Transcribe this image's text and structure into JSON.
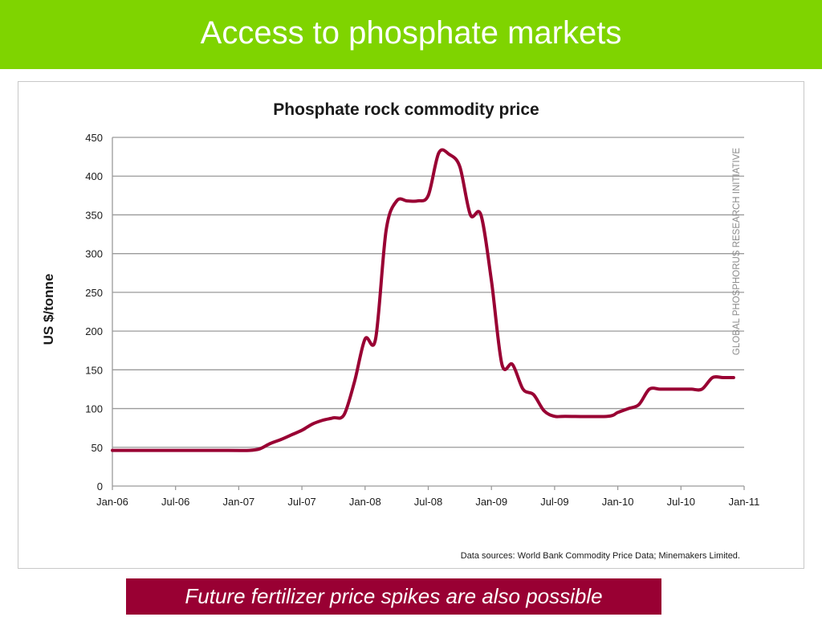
{
  "slide": {
    "title": "Access to phosphate markets",
    "banner_text": "Future fertilizer price spikes are also possible"
  },
  "colors": {
    "header_bg": "#7fd400",
    "banner_bg": "#990033",
    "line": "#990033"
  },
  "chart_data": {
    "type": "line",
    "title": "Phosphate rock commodity price",
    "ylabel": "US $/tonne",
    "xlabel": "",
    "ylim": [
      0,
      450
    ],
    "yticks": [
      0,
      50,
      100,
      150,
      200,
      250,
      300,
      350,
      400,
      450
    ],
    "xrange": [
      "2006-01",
      "2011-01"
    ],
    "xticks": [
      "Jan-06",
      "Jul-06",
      "Jan-07",
      "Jul-07",
      "Jan-08",
      "Jul-08",
      "Jan-09",
      "Jul-09",
      "Jan-10",
      "Jul-10",
      "Jan-11"
    ],
    "grid": "horizontal",
    "watermark": "GLOBAL PHOSPHORUS RESEARCH INITIATIVE",
    "source": "Data sources: World Bank Commodity Price Data; Minemakers Limited.",
    "series": [
      {
        "x": [
          "2006-01",
          "2006-06",
          "2006-12",
          "2007-02",
          "2007-03",
          "2007-04",
          "2007-05",
          "2007-06",
          "2007-07",
          "2007-08",
          "2007-09",
          "2007-10",
          "2007-11",
          "2007-12",
          "2008-01",
          "2008-02",
          "2008-03",
          "2008-04",
          "2008-05",
          "2008-06",
          "2008-07",
          "2008-08",
          "2008-09",
          "2008-10",
          "2008-11",
          "2008-12",
          "2009-01",
          "2009-02",
          "2009-03",
          "2009-04",
          "2009-05",
          "2009-06",
          "2009-07",
          "2009-08",
          "2009-12",
          "2010-01",
          "2010-02",
          "2010-03",
          "2010-04",
          "2010-05",
          "2010-06",
          "2010-07",
          "2010-08",
          "2010-09",
          "2010-10",
          "2010-11",
          "2010-12"
        ],
        "values": [
          46,
          46,
          46,
          46,
          48,
          55,
          60,
          66,
          72,
          80,
          85,
          88,
          92,
          135,
          190,
          190,
          330,
          368,
          368,
          368,
          375,
          430,
          428,
          412,
          350,
          350,
          265,
          157,
          157,
          125,
          118,
          97,
          90,
          90,
          90,
          95,
          100,
          105,
          125,
          125,
          125,
          125,
          125,
          125,
          140,
          140,
          140
        ]
      }
    ]
  }
}
